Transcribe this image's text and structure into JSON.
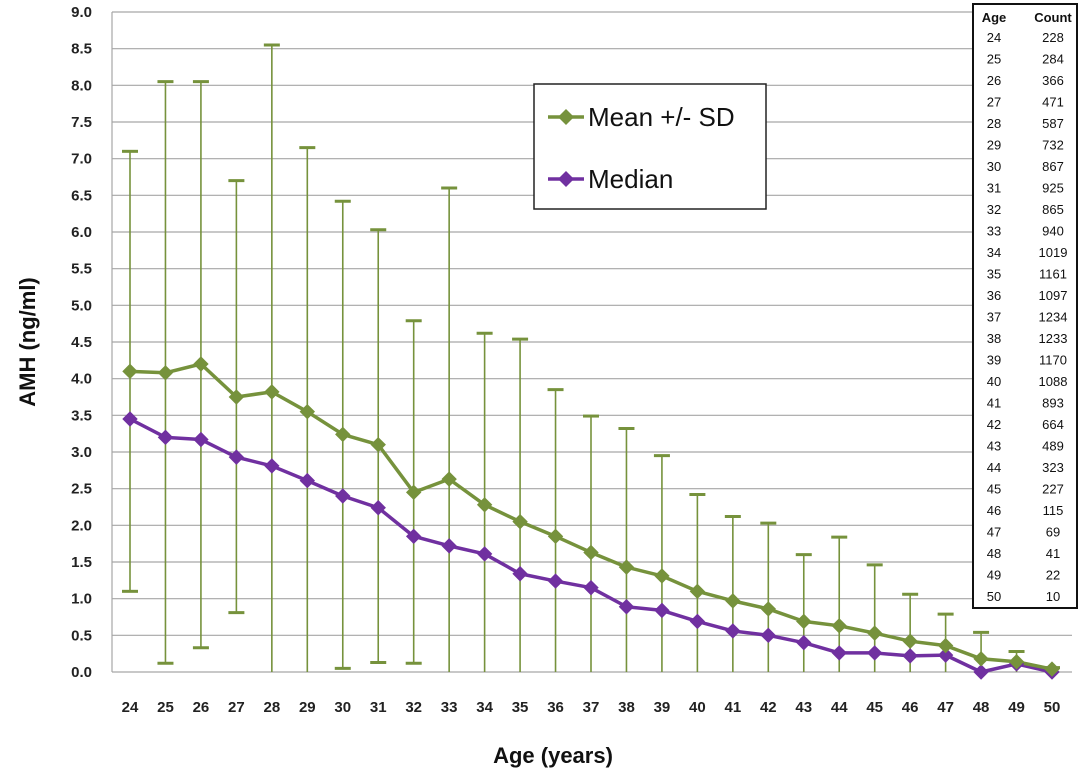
{
  "chart_data": {
    "type": "line",
    "xlabel": "Age (years)",
    "ylabel": "AMH (ng/ml)",
    "ylim": [
      0,
      9
    ],
    "y_ticks": [
      "0.0",
      "0.5",
      "1.0",
      "1.5",
      "2.0",
      "2.5",
      "3.0",
      "3.5",
      "4.0",
      "4.5",
      "5.0",
      "5.5",
      "6.0",
      "6.5",
      "7.0",
      "7.5",
      "8.0",
      "8.5",
      "9.0"
    ],
    "categories": [
      "24",
      "25",
      "26",
      "27",
      "28",
      "29",
      "30",
      "31",
      "32",
      "33",
      "34",
      "35",
      "36",
      "37",
      "38",
      "39",
      "40",
      "41",
      "42",
      "43",
      "44",
      "45",
      "46",
      "47",
      "48",
      "49",
      "50"
    ],
    "grid": "horizontal",
    "legend_position": "top-center",
    "series": [
      {
        "name": "Mean +/- SD",
        "color": "#76923c",
        "marker": "diamond",
        "values": [
          4.1,
          4.08,
          4.2,
          3.75,
          3.82,
          3.55,
          3.24,
          3.1,
          2.45,
          2.63,
          2.28,
          2.05,
          1.85,
          1.63,
          1.43,
          1.31,
          1.1,
          0.97,
          0.86,
          0.69,
          0.63,
          0.53,
          0.42,
          0.36,
          0.18,
          0.14,
          0.04
        ],
        "error_upper": [
          7.1,
          8.05,
          8.05,
          6.7,
          8.55,
          7.15,
          6.42,
          6.03,
          4.79,
          6.6,
          4.62,
          4.54,
          3.85,
          3.49,
          3.32,
          2.95,
          2.42,
          2.12,
          2.03,
          1.6,
          1.84,
          1.46,
          1.06,
          0.79,
          0.54,
          0.28,
          0.06
        ],
        "error_lower": [
          1.1,
          0.12,
          0.33,
          0.81,
          0.0,
          0.0,
          0.05,
          0.13,
          0.12,
          0.0,
          0.0,
          0.0,
          0.0,
          0.0,
          0.0,
          0.0,
          0.0,
          0.0,
          0.0,
          0.0,
          0.0,
          0.0,
          0.0,
          0.0,
          0.0,
          0.0,
          0.0
        ]
      },
      {
        "name": "Median",
        "color": "#7030a0",
        "marker": "diamond",
        "values": [
          3.45,
          3.2,
          3.17,
          2.93,
          2.81,
          2.61,
          2.4,
          2.24,
          1.85,
          1.72,
          1.61,
          1.34,
          1.24,
          1.15,
          0.89,
          0.84,
          0.69,
          0.56,
          0.5,
          0.4,
          0.26,
          0.26,
          0.22,
          0.23,
          0.0,
          0.11,
          0.0
        ]
      }
    ],
    "table": {
      "headers": [
        "Age",
        "Count"
      ],
      "rows": [
        [
          "24",
          "228"
        ],
        [
          "25",
          "284"
        ],
        [
          "26",
          "366"
        ],
        [
          "27",
          "471"
        ],
        [
          "28",
          "587"
        ],
        [
          "29",
          "732"
        ],
        [
          "30",
          "867"
        ],
        [
          "31",
          "925"
        ],
        [
          "32",
          "865"
        ],
        [
          "33",
          "940"
        ],
        [
          "34",
          "1019"
        ],
        [
          "35",
          "1161"
        ],
        [
          "36",
          "1097"
        ],
        [
          "37",
          "1234"
        ],
        [
          "38",
          "1233"
        ],
        [
          "39",
          "1170"
        ],
        [
          "40",
          "1088"
        ],
        [
          "41",
          "893"
        ],
        [
          "42",
          "664"
        ],
        [
          "43",
          "489"
        ],
        [
          "44",
          "323"
        ],
        [
          "45",
          "227"
        ],
        [
          "46",
          "115"
        ],
        [
          "47",
          "69"
        ],
        [
          "48",
          "41"
        ],
        [
          "49",
          "22"
        ],
        [
          "50",
          "10"
        ]
      ]
    }
  }
}
